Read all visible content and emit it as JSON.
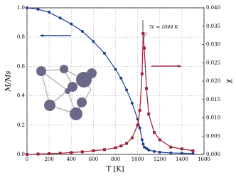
{
  "chart_data": {
    "type": "line",
    "xlabel": "T [K]",
    "ylabel": "M/Ms",
    "y2label": "χ",
    "annotation": "Tc ≈ 1044 K",
    "x": [
      0,
      100,
      200,
      300,
      400,
      500,
      600,
      700,
      800,
      850,
      900,
      950,
      1000,
      1020,
      1040,
      1050,
      1060,
      1080,
      1100,
      1150,
      1200,
      1300,
      1400,
      1500
    ],
    "series": [
      {
        "name": "M/Ms",
        "color": "#1f3f8f",
        "marker": "circle",
        "values": [
          1.0,
          0.99,
          0.97,
          0.93,
          0.89,
          0.84,
          0.77,
          0.69,
          0.58,
          0.52,
          0.44,
          0.35,
          0.24,
          0.18,
          0.1,
          0.07,
          0.05,
          0.04,
          0.03,
          0.02,
          0.015,
          0.01,
          0.008,
          0.006
        ]
      },
      {
        "name": "χ",
        "color": "#a0203a",
        "marker": "square",
        "axis": "y2",
        "values": [
          0,
          0.0001,
          0.0002,
          0.0003,
          0.0005,
          0.0007,
          0.001,
          0.0013,
          0.0018,
          0.0023,
          0.003,
          0.0045,
          0.008,
          0.012,
          0.022,
          0.033,
          0.029,
          0.018,
          0.011,
          0.006,
          0.004,
          0.002,
          0.0015,
          0.001
        ]
      }
    ],
    "xlim": [
      0,
      1600
    ],
    "xticks": [
      0,
      200,
      400,
      600,
      800,
      1000,
      1200,
      1400,
      1600
    ],
    "ylim": [
      0,
      1.0
    ],
    "yticks": [
      {
        "value": 0,
        "label": "0.0"
      },
      0.2,
      0.4,
      0.6,
      0.8,
      {
        "value": 1,
        "label": "1.0"
      }
    ],
    "y2lim": [
      0,
      0.04
    ],
    "y2ticks": [
      {
        "value": 0,
        "label": "0.000"
      },
      {
        "value": 0.005,
        "label": "0.005"
      },
      {
        "value": 0.01,
        "label": "0.010"
      },
      {
        "value": 0.015,
        "label": "0.015"
      },
      {
        "value": 0.02,
        "label": "0.020"
      },
      {
        "value": 0.025,
        "label": "0.025"
      },
      {
        "value": 0.03,
        "label": "0.030"
      },
      {
        "value": 0.035,
        "label": "0.035"
      },
      {
        "value": 0.04,
        "label": "0.040"
      }
    ],
    "grid": true
  }
}
